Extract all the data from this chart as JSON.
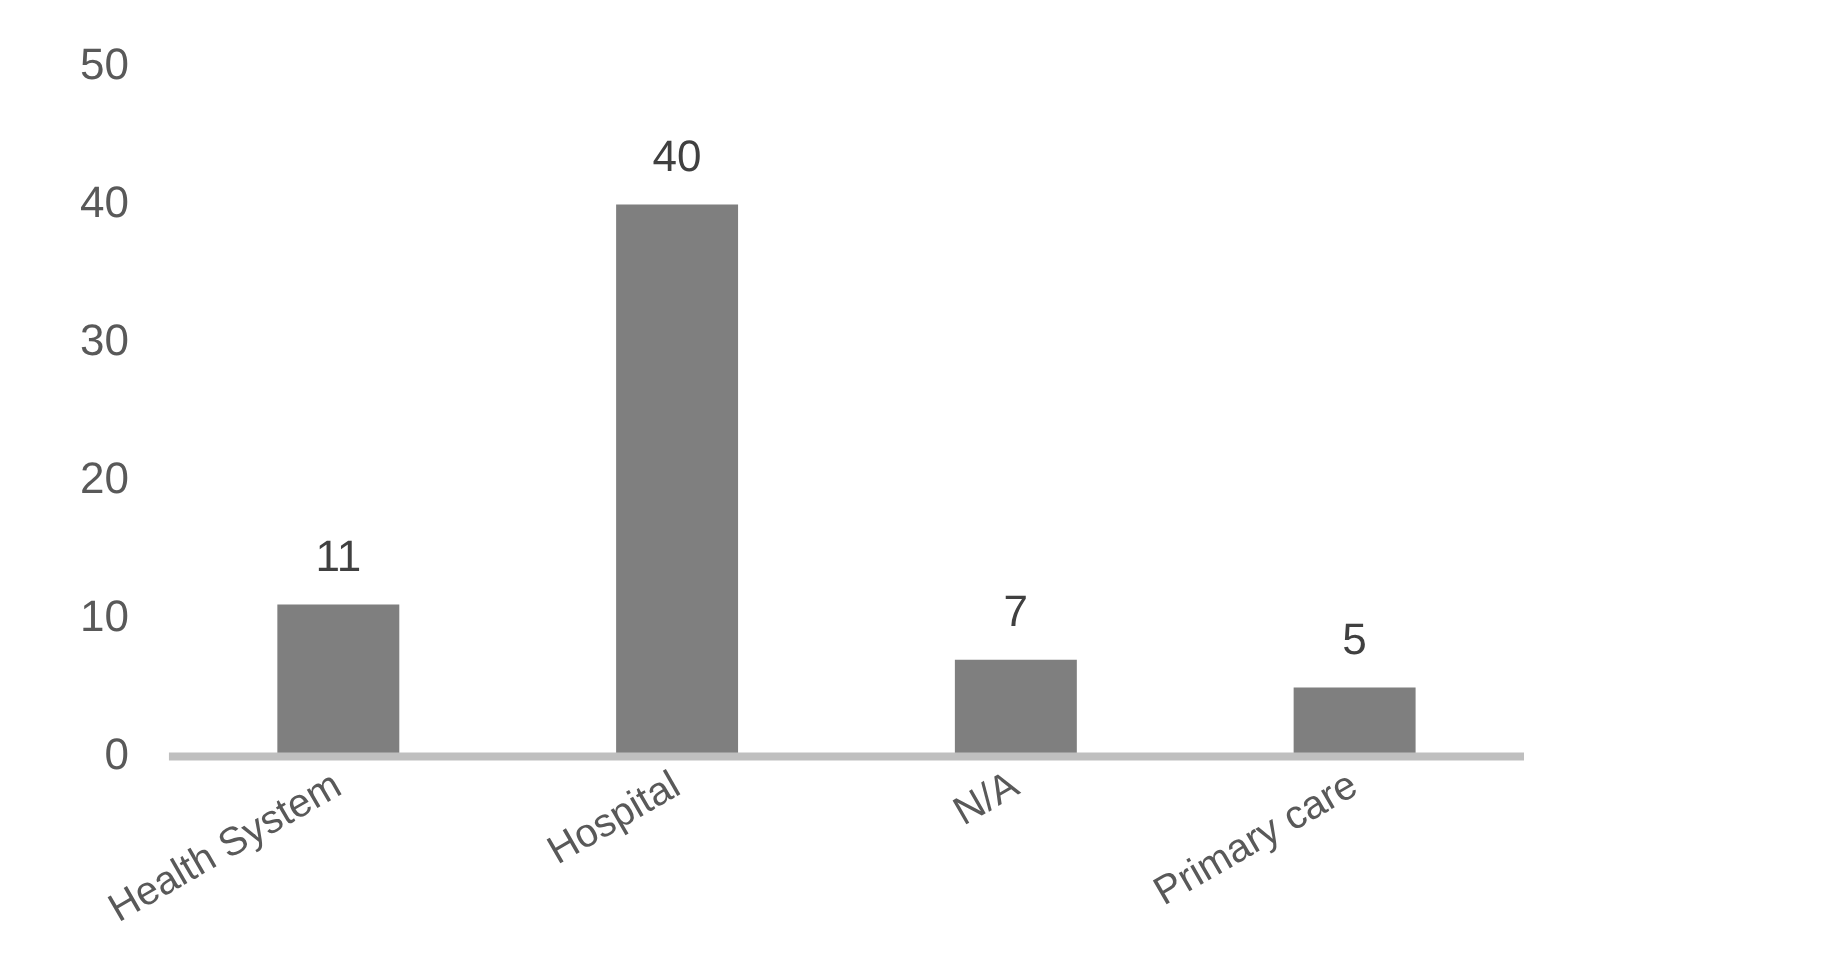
{
  "chart_data": {
    "type": "bar",
    "categories": [
      "Health System",
      "Hospital",
      "N/A",
      "Primary care"
    ],
    "values": [
      11,
      40,
      7,
      5
    ],
    "color": "#7f7f7f",
    "ylim": [
      0,
      50
    ],
    "yticks": [
      0,
      10,
      20,
      30,
      40,
      50
    ],
    "grid": false,
    "legend": false,
    "data_labels": true
  }
}
